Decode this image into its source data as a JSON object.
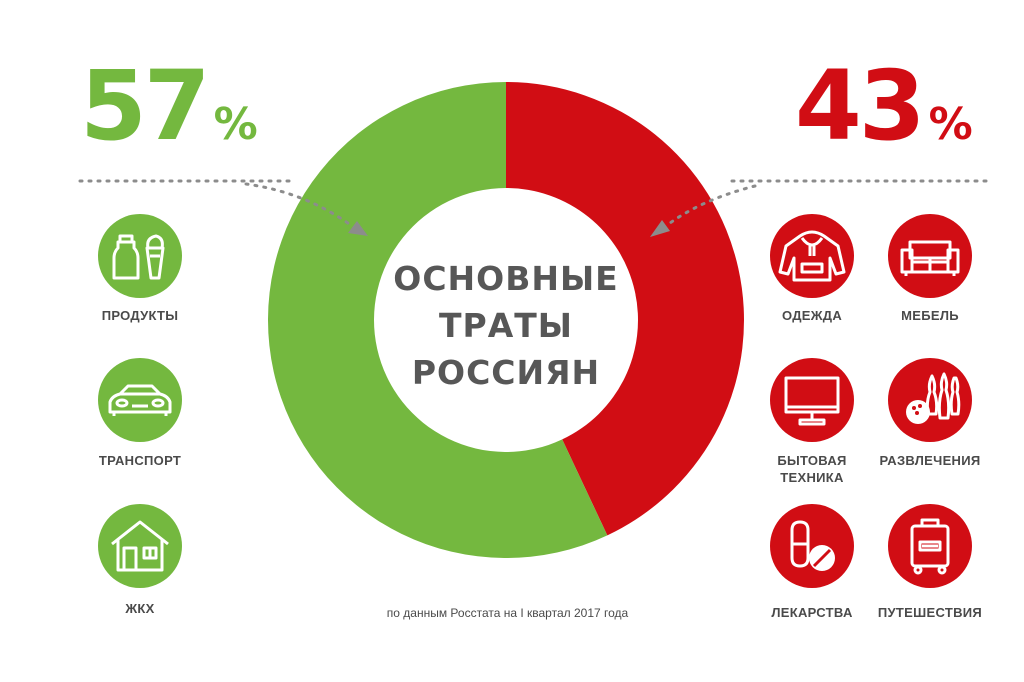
{
  "chart_data": {
    "type": "pie",
    "categories": [
      "57%",
      "43%"
    ],
    "values": [
      57,
      43
    ],
    "colors": [
      "#74b83f",
      "#d10d14"
    ],
    "title_lines": [
      "ОСНОВНЫЕ",
      "ТРАТЫ",
      "РОССИЯН"
    ],
    "source": "по данным Росстата на I квартал 2017 года"
  },
  "left": {
    "value": "57",
    "unit": "%",
    "color": "#74b83f",
    "items": [
      {
        "label": "ПРОДУКТЫ",
        "icon": "groceries-icon"
      },
      {
        "label": "ТРАНСПОРТ",
        "icon": "car-icon"
      },
      {
        "label": "ЖКХ",
        "icon": "house-icon"
      }
    ]
  },
  "right": {
    "value": "43",
    "unit": "%",
    "color": "#d10d14",
    "items": [
      {
        "label": "ОДЕЖДА",
        "icon": "hoodie-icon"
      },
      {
        "label": "МЕБЕЛЬ",
        "icon": "sofa-icon"
      },
      {
        "label_line1": "БЫТОВАЯ",
        "label_line2": "ТЕХНИКА",
        "icon": "monitor-icon"
      },
      {
        "label": "РАЗВЛЕЧЕНИЯ",
        "icon": "bowling-icon"
      },
      {
        "label": "ЛЕКАРСТВА",
        "icon": "pills-icon"
      },
      {
        "label": "ПУТЕШЕСТВИЯ",
        "icon": "suitcase-icon"
      }
    ]
  }
}
